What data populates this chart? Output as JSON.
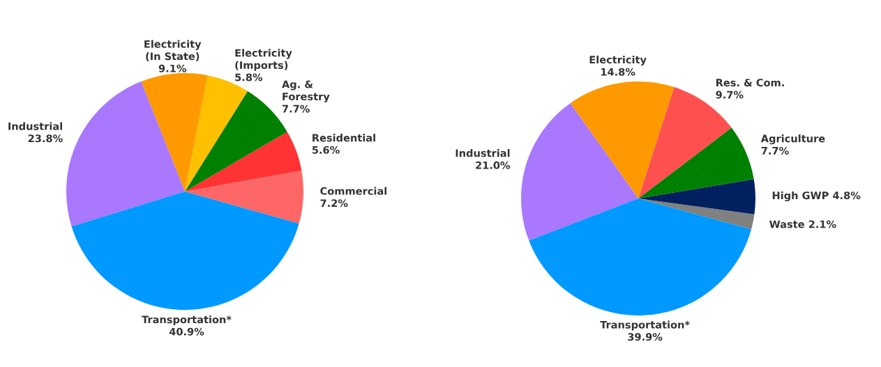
{
  "chart_data": [
    {
      "type": "pie",
      "categories": [
        "Commercial",
        "Residential",
        "Ag. &\nForestry",
        "Electricity\n(Imports)",
        "Electricity\n(In State)",
        "Industrial",
        "Transportation*"
      ],
      "values": [
        7.2,
        5.6,
        7.7,
        5.8,
        9.1,
        23.8,
        40.9
      ],
      "value_labels": [
        "7.2%",
        "5.6%",
        "7.7%",
        "5.8%",
        "9.1%",
        "23.8%",
        "40.9%"
      ],
      "colors": [
        "#ff6666",
        "#ff3333",
        "#008000",
        "#ffc000",
        "#ff9900",
        "#aa77ff",
        "#0099ff"
      ]
    },
    {
      "type": "pie",
      "categories": [
        "Waste",
        "High GWP",
        "Agriculture",
        "Res. & Com.",
        "Electricity",
        "Industrial",
        "Transportation*"
      ],
      "values": [
        2.1,
        4.8,
        7.7,
        9.7,
        14.8,
        21.0,
        39.9
      ],
      "value_labels": [
        "2.1%",
        "4.8%",
        "7.7%",
        "9.7%",
        "14.8%",
        "21.0%",
        "39.9%"
      ],
      "colors": [
        "#808080",
        "#002060",
        "#008000",
        "#ff5050",
        "#ff9900",
        "#aa77ff",
        "#0099ff"
      ]
    }
  ]
}
